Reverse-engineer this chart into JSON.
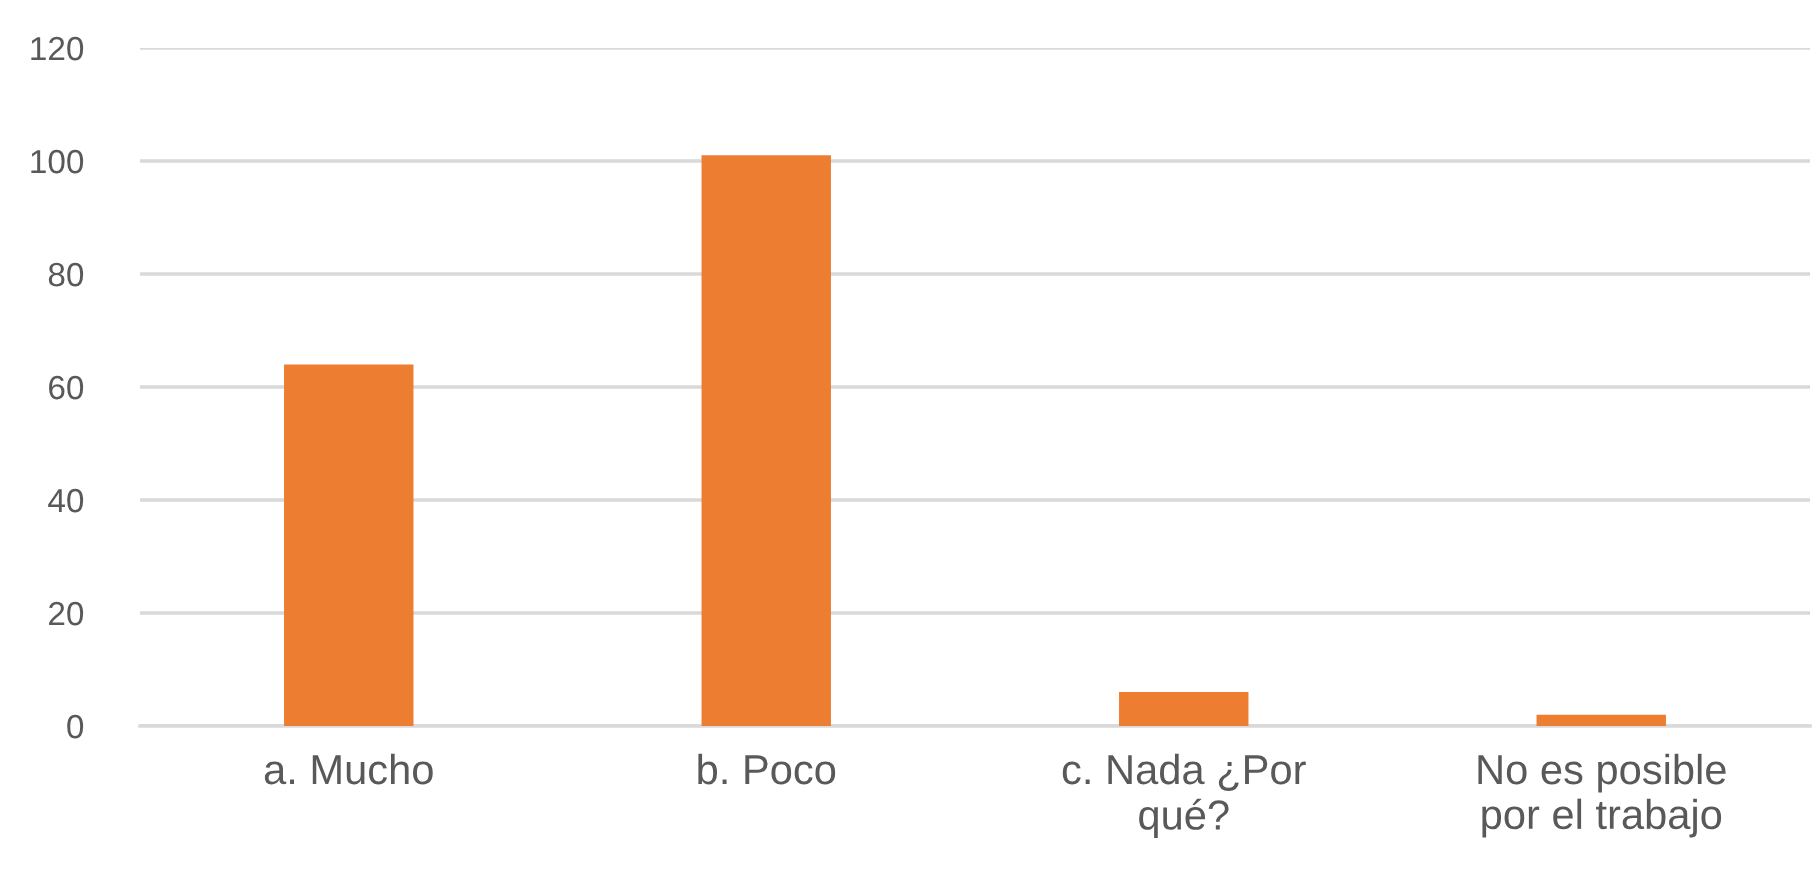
{
  "chart_data": {
    "type": "bar",
    "categories": [
      "a. Mucho",
      "b. Poco",
      "c. Nada ¿Por\nqué?",
      "No es posible\npor el trabajo"
    ],
    "values": [
      64,
      101,
      6,
      2
    ],
    "color": "#ed7d31",
    "ylim": [
      0,
      120
    ],
    "yticks": [
      0,
      20,
      40,
      60,
      80,
      100,
      120
    ],
    "grid": "y",
    "legend": false
  }
}
